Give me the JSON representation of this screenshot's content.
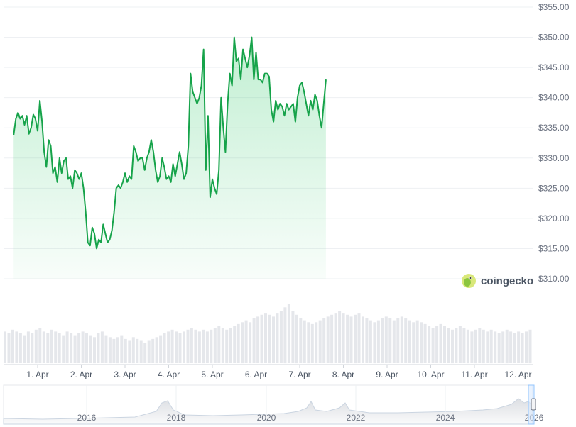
{
  "brand": {
    "name": "coingecko",
    "icon": "gecko-icon"
  },
  "colors": {
    "line": "#16a34a",
    "area": "#22c55e",
    "volume": "#e5e7eb",
    "grid": "#eef0f3"
  },
  "chart_data": {
    "type": "line",
    "title": "",
    "xlabel": "",
    "ylabel": "",
    "currency_prefix": "$",
    "ylim": [
      310,
      355
    ],
    "y_ticks": [
      "$310.00",
      "$315.00",
      "$320.00",
      "$325.00",
      "$330.00",
      "$335.00",
      "$340.00",
      "$345.00",
      "$350.00",
      "$355.00"
    ],
    "y_tick_values": [
      310,
      315,
      320,
      325,
      330,
      335,
      340,
      345,
      350,
      355
    ],
    "x_ticks": [
      "1. Apr",
      "2. Apr",
      "3. Apr",
      "4. Apr",
      "5. Apr",
      "6. Apr",
      "7. Apr",
      "8. Apr",
      "9. Apr",
      "10. Apr",
      "11. Apr",
      "12. Apr"
    ],
    "x_range_days": [
      0.45,
      12.7
    ],
    "grid": true,
    "series": [
      {
        "points": [
          [
            0.45,
            333.8
          ],
          [
            0.5,
            336.5
          ],
          [
            0.55,
            337.5
          ],
          [
            0.6,
            336.5
          ],
          [
            0.65,
            337.0
          ],
          [
            0.7,
            335.5
          ],
          [
            0.75,
            337.0
          ],
          [
            0.8,
            334.0
          ],
          [
            0.85,
            335.0
          ],
          [
            0.9,
            337.2
          ],
          [
            0.95,
            336.5
          ],
          [
            1.0,
            334.5
          ],
          [
            1.05,
            339.5
          ],
          [
            1.1,
            336.0
          ],
          [
            1.15,
            331.0
          ],
          [
            1.2,
            328.5
          ],
          [
            1.25,
            333.0
          ],
          [
            1.3,
            332.0
          ],
          [
            1.35,
            327.5
          ],
          [
            1.4,
            328.5
          ],
          [
            1.45,
            326.0
          ],
          [
            1.5,
            330.0
          ],
          [
            1.55,
            327.5
          ],
          [
            1.6,
            329.5
          ],
          [
            1.65,
            330.0
          ],
          [
            1.7,
            326.5
          ],
          [
            1.75,
            327.0
          ],
          [
            1.8,
            325.0
          ],
          [
            1.85,
            328.0
          ],
          [
            1.9,
            327.5
          ],
          [
            1.95,
            326.5
          ],
          [
            2.0,
            327.5
          ],
          [
            2.05,
            325.0
          ],
          [
            2.1,
            321.0
          ],
          [
            2.15,
            316.0
          ],
          [
            2.2,
            315.5
          ],
          [
            2.25,
            318.5
          ],
          [
            2.3,
            317.5
          ],
          [
            2.35,
            315.0
          ],
          [
            2.4,
            316.5
          ],
          [
            2.45,
            316.0
          ],
          [
            2.5,
            319.0
          ],
          [
            2.55,
            317.5
          ],
          [
            2.6,
            316.0
          ],
          [
            2.65,
            316.5
          ],
          [
            2.7,
            318.0
          ],
          [
            2.75,
            321.0
          ],
          [
            2.8,
            325.0
          ],
          [
            2.85,
            325.5
          ],
          [
            2.9,
            325.0
          ],
          [
            2.95,
            326.0
          ],
          [
            3.0,
            327.5
          ],
          [
            3.05,
            326.0
          ],
          [
            3.1,
            327.0
          ],
          [
            3.15,
            326.5
          ],
          [
            3.2,
            332.0
          ],
          [
            3.25,
            331.0
          ],
          [
            3.3,
            329.5
          ],
          [
            3.35,
            330.0
          ],
          [
            3.4,
            330.0
          ],
          [
            3.45,
            328.0
          ],
          [
            3.5,
            330.0
          ],
          [
            3.55,
            331.0
          ],
          [
            3.6,
            333.0
          ],
          [
            3.65,
            331.0
          ],
          [
            3.7,
            328.0
          ],
          [
            3.75,
            326.0
          ],
          [
            3.8,
            327.0
          ],
          [
            3.85,
            330.0
          ],
          [
            3.9,
            328.5
          ],
          [
            3.95,
            326.5
          ],
          [
            4.0,
            327.0
          ],
          [
            4.05,
            326.0
          ],
          [
            4.1,
            329.0
          ],
          [
            4.15,
            327.0
          ],
          [
            4.2,
            329.0
          ],
          [
            4.25,
            331.0
          ],
          [
            4.3,
            329.0
          ],
          [
            4.35,
            326.5
          ],
          [
            4.4,
            327.5
          ],
          [
            4.45,
            332.0
          ],
          [
            4.5,
            344.0
          ],
          [
            4.55,
            341.0
          ],
          [
            4.6,
            340.0
          ],
          [
            4.65,
            339.0
          ],
          [
            4.7,
            340.0
          ],
          [
            4.75,
            342.0
          ],
          [
            4.8,
            348.0
          ],
          [
            4.85,
            328.0
          ],
          [
            4.9,
            337.0
          ],
          [
            4.95,
            323.5
          ],
          [
            5.0,
            326.5
          ],
          [
            5.05,
            325.0
          ],
          [
            5.1,
            324.0
          ],
          [
            5.15,
            328.0
          ],
          [
            5.2,
            340.0
          ],
          [
            5.25,
            335.0
          ],
          [
            5.3,
            331.0
          ],
          [
            5.35,
            339.0
          ],
          [
            5.4,
            344.0
          ],
          [
            5.45,
            342.0
          ],
          [
            5.5,
            350.0
          ],
          [
            5.55,
            346.0
          ],
          [
            5.6,
            346.5
          ],
          [
            5.65,
            343.0
          ],
          [
            5.7,
            348.0
          ],
          [
            5.75,
            346.5
          ],
          [
            5.8,
            345.0
          ],
          [
            5.85,
            347.0
          ],
          [
            5.9,
            350.0
          ],
          [
            5.95,
            343.0
          ],
          [
            6.0,
            347.5
          ],
          [
            6.05,
            343.0
          ],
          [
            6.1,
            343.0
          ],
          [
            6.15,
            342.5
          ],
          [
            6.2,
            344.0
          ],
          [
            6.25,
            344.0
          ],
          [
            6.3,
            343.5
          ],
          [
            6.35,
            338.0
          ],
          [
            6.4,
            336.0
          ],
          [
            6.45,
            339.5
          ],
          [
            6.5,
            338.0
          ],
          [
            6.55,
            339.0
          ],
          [
            6.6,
            338.5
          ],
          [
            6.65,
            337.0
          ],
          [
            6.7,
            339.0
          ],
          [
            6.75,
            338.0
          ],
          [
            6.8,
            338.5
          ],
          [
            6.85,
            339.0
          ],
          [
            6.9,
            336.0
          ],
          [
            6.95,
            340.0
          ],
          [
            7.0,
            342.0
          ],
          [
            7.05,
            342.5
          ],
          [
            7.1,
            341.0
          ],
          [
            7.15,
            339.0
          ],
          [
            7.2,
            337.0
          ],
          [
            7.25,
            339.5
          ],
          [
            7.3,
            338.0
          ],
          [
            7.35,
            340.5
          ],
          [
            7.4,
            339.5
          ],
          [
            7.45,
            337.0
          ],
          [
            7.5,
            335.0
          ],
          [
            7.55,
            339.0
          ],
          [
            7.6,
            343.0
          ]
        ]
      }
    ],
    "volume": [
      17,
      16,
      18,
      17,
      16,
      15,
      17,
      16,
      18,
      19,
      17,
      16,
      18,
      17,
      16,
      15,
      17,
      16,
      15,
      16,
      17,
      16,
      15,
      14,
      16,
      17,
      15,
      14,
      13,
      14,
      15,
      13,
      12,
      14,
      13,
      12,
      11,
      12,
      13,
      14,
      15,
      16,
      17,
      18,
      17,
      16,
      17,
      18,
      19,
      18,
      17,
      18,
      17,
      18,
      19,
      20,
      19,
      18,
      19,
      20,
      21,
      22,
      23,
      22,
      24,
      25,
      26,
      27,
      26,
      25,
      27,
      28,
      30,
      32,
      28,
      26,
      24,
      23,
      22,
      21,
      22,
      23,
      24,
      25,
      26,
      27,
      28,
      27,
      26,
      25,
      26,
      27,
      25,
      24,
      23,
      22,
      23,
      24,
      25,
      24,
      23,
      24,
      25,
      24,
      23,
      22,
      23,
      22,
      21,
      20,
      19,
      20,
      21,
      20,
      19,
      18,
      19,
      20,
      19,
      18,
      17,
      18,
      19,
      18,
      17,
      18,
      17,
      16,
      17,
      18,
      17,
      16,
      17,
      16,
      17,
      18
    ],
    "navigator": {
      "x_ticks": [
        "2016",
        "2018",
        "2020",
        "2022",
        "2024",
        "2026"
      ]
    }
  }
}
